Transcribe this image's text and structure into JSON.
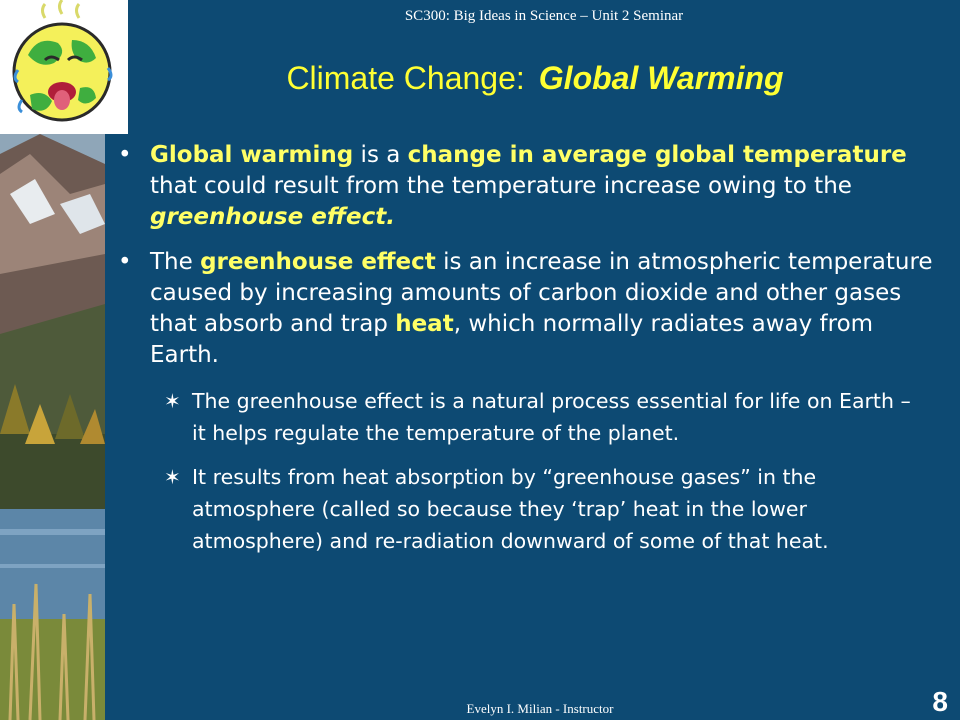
{
  "header": {
    "course": "SC300: Big Ideas in Science – Unit 2 Seminar"
  },
  "title": {
    "plain": "Climate Change:",
    "emphasis": "Global Warming"
  },
  "bullets": [
    {
      "marker": "•",
      "parts": [
        "Global warming",
        " is a ",
        "change in average global temperature",
        " that could result from the temperature increase owing to the ",
        "greenhouse effect."
      ]
    },
    {
      "marker": "•",
      "parts": [
        "The ",
        "greenhouse effect",
        " is an increase in atmospheric temperature caused by increasing amounts of carbon dioxide and other gases that absorb and trap ",
        "heat",
        ", which normally radiates away from Earth."
      ]
    }
  ],
  "subbullets": [
    {
      "marker": "✶",
      "text": "The greenhouse effect is a natural process essential for life on Earth – it helps regulate the temperature of the planet."
    },
    {
      "marker": "✶",
      "text": "It results from heat absorption by “greenhouse gases” in the atmosphere (called so because they ‘trap’ heat in the lower atmosphere) and re-radiation downward of some of that heat."
    }
  ],
  "footer": {
    "instructor": "Evelyn I. Milian - Instructor",
    "page": "8"
  },
  "colors": {
    "background": "#0d4a73",
    "highlight": "#ffff66",
    "title": "#ffff33",
    "text": "#ffffff"
  },
  "icons": {
    "logo": "sweating-earth-icon",
    "photo": "mountain-lake-photo"
  }
}
